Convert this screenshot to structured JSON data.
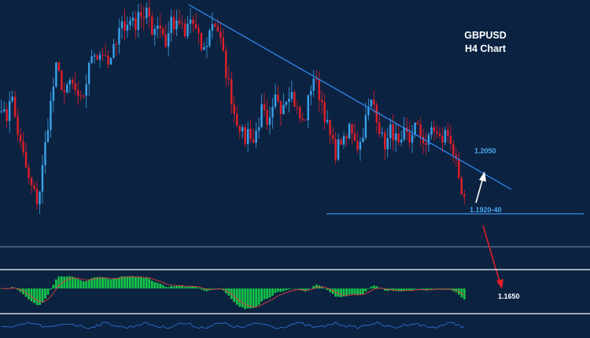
{
  "chart_data": {
    "type": "candlestick",
    "title": "GBPUSD",
    "subtitle": "H4 Chart",
    "colors": {
      "background": "#0b2240",
      "bull": "#3aa0e8",
      "bear": "#e01e2a",
      "trendline": "#2f7fe0",
      "level_line": "#3d8ee6",
      "separator": "#cfd8e3",
      "macd_hist": "#16c24a",
      "macd_signal": "#e04040",
      "osc_line": "#2f6fd0",
      "annotation_blue": "#4aa8f0",
      "arrow_up": "#ffffff",
      "arrow_down": "#e01e2a"
    },
    "y_range": [
      1.16,
      1.232
    ],
    "close_path": [
      1.204,
      1.198,
      1.208,
      1.2,
      1.193,
      1.188,
      1.182,
      1.179,
      1.176,
      1.186,
      1.197,
      1.206,
      1.214,
      1.21,
      1.206,
      1.21,
      1.208,
      1.203,
      1.207,
      1.213,
      1.22,
      1.217,
      1.219,
      1.214,
      1.216,
      1.222,
      1.228,
      1.224,
      1.229,
      1.225,
      1.231,
      1.227,
      1.23,
      1.224,
      1.227,
      1.225,
      1.22,
      1.228,
      1.225,
      1.227,
      1.222,
      1.228,
      1.226,
      1.222,
      1.218,
      1.222,
      1.227,
      1.226,
      1.22,
      1.213,
      1.207,
      1.2,
      1.198,
      1.193,
      1.197,
      1.193,
      1.198,
      1.203,
      1.196,
      1.2,
      1.207,
      1.203,
      1.206,
      1.208,
      1.204,
      1.2,
      1.198,
      1.205,
      1.212,
      1.208,
      1.204,
      1.198,
      1.193,
      1.19,
      1.194,
      1.192,
      1.198,
      1.195,
      1.191,
      1.197,
      1.202,
      1.205,
      1.2,
      1.194,
      1.192,
      1.197,
      1.194,
      1.19,
      1.196,
      1.193,
      1.198,
      1.196,
      1.194,
      1.192,
      1.198,
      1.195,
      1.193,
      1.196,
      1.194,
      1.188,
      1.179,
      1.176
    ],
    "trendline": {
      "from": [
        0.32,
        1.231
      ],
      "to": [
        0.865,
        1.194
      ]
    },
    "annotations": [
      {
        "text": "1.2050",
        "kind": "target_up"
      },
      {
        "text": "1.1920-40",
        "kind": "support"
      },
      {
        "text": "1.1650",
        "kind": "target_down"
      }
    ],
    "lower_panels": [
      "histogram",
      "oscillator"
    ]
  }
}
